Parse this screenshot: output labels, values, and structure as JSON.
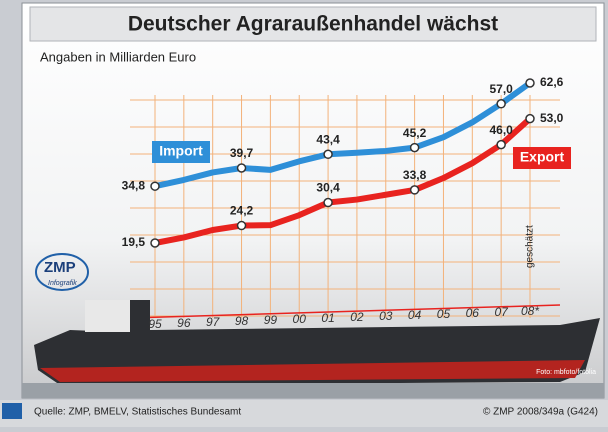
{
  "chart_data": {
    "type": "line",
    "title": "Deutscher Agraraußenhandel wächst",
    "subtitle": "Angaben in Milliarden Euro",
    "categories": [
      "95",
      "96",
      "97",
      "98",
      "99",
      "00",
      "01",
      "02",
      "03",
      "04",
      "05",
      "06",
      "07",
      "08*"
    ],
    "series": [
      {
        "name": "Import",
        "color": "#2e8fd8",
        "values": [
          34.8,
          36.5,
          38.5,
          39.7,
          39.2,
          41.5,
          43.4,
          43.8,
          44.3,
          45.2,
          48.0,
          52.0,
          57.0,
          62.6
        ],
        "value_labels": [
          "34,8",
          null,
          null,
          "39,7",
          null,
          null,
          "43,4",
          null,
          null,
          "45,2",
          null,
          null,
          "57,0",
          "62,6"
        ]
      },
      {
        "name": "Export",
        "color": "#e8231f",
        "values": [
          19.5,
          21.0,
          23.0,
          24.2,
          24.3,
          27.0,
          30.4,
          31.2,
          32.5,
          33.8,
          37.0,
          41.0,
          46.0,
          53.0
        ],
        "value_labels": [
          "19,5",
          null,
          null,
          "24,2",
          null,
          null,
          "30,4",
          null,
          null,
          "33,8",
          null,
          null,
          "46,0",
          "53,0"
        ]
      }
    ],
    "annotation": "geschätzt",
    "logo": {
      "name": "ZMP",
      "sub": "Infografik"
    },
    "photo_credit": "Foto: mbfoto/fotolia",
    "source": "Quelle: ZMP, BMELV, Statistisches Bundesamt",
    "copyright": "© ZMP 2008/349a (G424)"
  }
}
